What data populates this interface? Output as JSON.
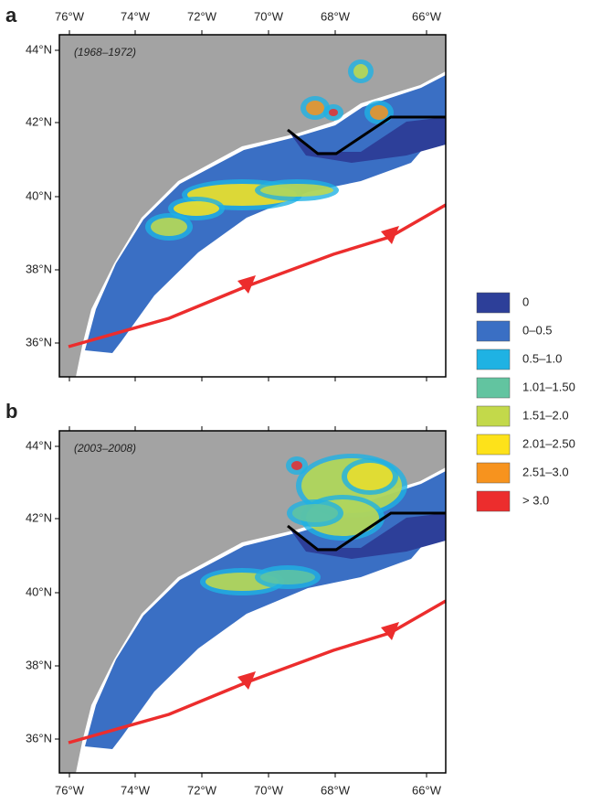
{
  "panels": [
    {
      "label": "a",
      "period": "(1968–1972)"
    },
    {
      "label": "b",
      "period": "(2003–2008)"
    }
  ],
  "axes": {
    "longitudes": [
      "76°W",
      "74°W",
      "72°W",
      "70°W",
      "68°W",
      "66°W"
    ],
    "latitudes": [
      "44°N",
      "42°N",
      "40°N",
      "38°N",
      "36°N"
    ]
  },
  "legend": [
    {
      "label": "0",
      "color": "#2d3f99"
    },
    {
      "label": "0–0.5",
      "color": "#3a6fc4"
    },
    {
      "label": "0.5–1.0",
      "color": "#1fb2e3"
    },
    {
      "label": "1.01–1.50",
      "color": "#62c4a0"
    },
    {
      "label": "1.51–2.0",
      "color": "#c3d94a"
    },
    {
      "label": "2.01–2.50",
      "color": "#fde21a"
    },
    {
      "label": "2.51–3.0",
      "color": "#f7931e"
    },
    {
      "label": "> 3.0",
      "color": "#ec2d2d"
    }
  ]
}
